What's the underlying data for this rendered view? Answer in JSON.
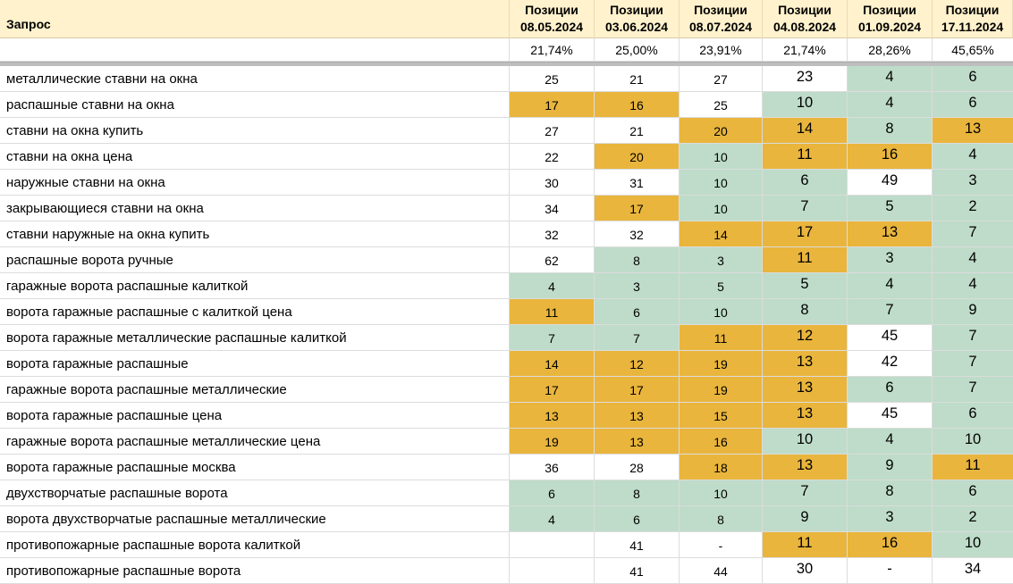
{
  "colors": {
    "highlight_yellow": "#E9B53C",
    "highlight_green": "#BEDCC9",
    "header_background": "#FFF2CC",
    "gridline": "#DCDCDC",
    "frozen_divider": "#BEBEBE"
  },
  "table": {
    "query_header": "Запрос",
    "columns": [
      {
        "line1": "Позиции",
        "line2": "08.05.2024"
      },
      {
        "line1": "Позиции",
        "line2": "03.06.2024"
      },
      {
        "line1": "Позиции",
        "line2": "08.07.2024"
      },
      {
        "line1": "Позиции",
        "line2": "04.08.2024"
      },
      {
        "line1": "Позиции",
        "line2": "01.09.2024"
      },
      {
        "line1": "Позиции",
        "line2": "17.11.2024"
      }
    ],
    "percent_row": [
      "21,74%",
      "25,00%",
      "23,91%",
      "21,74%",
      "28,26%",
      "45,65%"
    ],
    "rows": [
      {
        "query": "металлические ставни на окна",
        "cells": [
          {
            "v": "25",
            "bg": "w"
          },
          {
            "v": "21",
            "bg": "w"
          },
          {
            "v": "27",
            "bg": "w"
          },
          {
            "v": "23",
            "bg": "w"
          },
          {
            "v": "4",
            "bg": "g"
          },
          {
            "v": "6",
            "bg": "g"
          }
        ]
      },
      {
        "query": "распашные ставни на окна",
        "cells": [
          {
            "v": "17",
            "bg": "y"
          },
          {
            "v": "16",
            "bg": "y"
          },
          {
            "v": "25",
            "bg": "w"
          },
          {
            "v": "10",
            "bg": "g"
          },
          {
            "v": "4",
            "bg": "g"
          },
          {
            "v": "6",
            "bg": "g"
          }
        ]
      },
      {
        "query": "ставни на окна купить",
        "cells": [
          {
            "v": "27",
            "bg": "w"
          },
          {
            "v": "21",
            "bg": "w"
          },
          {
            "v": "20",
            "bg": "y"
          },
          {
            "v": "14",
            "bg": "y"
          },
          {
            "v": "8",
            "bg": "g"
          },
          {
            "v": "13",
            "bg": "y"
          }
        ]
      },
      {
        "query": "ставни на окна цена",
        "cells": [
          {
            "v": "22",
            "bg": "w"
          },
          {
            "v": "20",
            "bg": "y"
          },
          {
            "v": "10",
            "bg": "g"
          },
          {
            "v": "11",
            "bg": "y"
          },
          {
            "v": "16",
            "bg": "y"
          },
          {
            "v": "4",
            "bg": "g"
          }
        ]
      },
      {
        "query": "наружные ставни на окна",
        "cells": [
          {
            "v": "30",
            "bg": "w"
          },
          {
            "v": "31",
            "bg": "w"
          },
          {
            "v": "10",
            "bg": "g"
          },
          {
            "v": "6",
            "bg": "g"
          },
          {
            "v": "49",
            "bg": "w"
          },
          {
            "v": "3",
            "bg": "g"
          }
        ]
      },
      {
        "query": "закрывающиеся ставни на окна",
        "cells": [
          {
            "v": "34",
            "bg": "w"
          },
          {
            "v": "17",
            "bg": "y"
          },
          {
            "v": "10",
            "bg": "g"
          },
          {
            "v": "7",
            "bg": "g"
          },
          {
            "v": "5",
            "bg": "g"
          },
          {
            "v": "2",
            "bg": "g"
          }
        ]
      },
      {
        "query": "ставни наружные на окна купить",
        "cells": [
          {
            "v": "32",
            "bg": "w"
          },
          {
            "v": "32",
            "bg": "w"
          },
          {
            "v": "14",
            "bg": "y"
          },
          {
            "v": "17",
            "bg": "y"
          },
          {
            "v": "13",
            "bg": "y"
          },
          {
            "v": "7",
            "bg": "g"
          }
        ]
      },
      {
        "query": "распашные ворота ручные",
        "cells": [
          {
            "v": "62",
            "bg": "w"
          },
          {
            "v": "8",
            "bg": "g"
          },
          {
            "v": "3",
            "bg": "g"
          },
          {
            "v": "11",
            "bg": "y"
          },
          {
            "v": "3",
            "bg": "g"
          },
          {
            "v": "4",
            "bg": "g"
          }
        ]
      },
      {
        "query": "гаражные ворота распашные калиткой",
        "cells": [
          {
            "v": "4",
            "bg": "g"
          },
          {
            "v": "3",
            "bg": "g"
          },
          {
            "v": "5",
            "bg": "g"
          },
          {
            "v": "5",
            "bg": "g"
          },
          {
            "v": "4",
            "bg": "g"
          },
          {
            "v": "4",
            "bg": "g"
          }
        ]
      },
      {
        "query": "ворота гаражные распашные с калиткой цена",
        "cells": [
          {
            "v": "11",
            "bg": "y"
          },
          {
            "v": "6",
            "bg": "g"
          },
          {
            "v": "10",
            "bg": "g"
          },
          {
            "v": "8",
            "bg": "g"
          },
          {
            "v": "7",
            "bg": "g"
          },
          {
            "v": "9",
            "bg": "g"
          }
        ]
      },
      {
        "query": "ворота гаражные металлические распашные калиткой",
        "cells": [
          {
            "v": "7",
            "bg": "g"
          },
          {
            "v": "7",
            "bg": "g"
          },
          {
            "v": "11",
            "bg": "y"
          },
          {
            "v": "12",
            "bg": "y"
          },
          {
            "v": "45",
            "bg": "w"
          },
          {
            "v": "7",
            "bg": "g"
          }
        ]
      },
      {
        "query": "ворота гаражные распашные",
        "cells": [
          {
            "v": "14",
            "bg": "y"
          },
          {
            "v": "12",
            "bg": "y"
          },
          {
            "v": "19",
            "bg": "y"
          },
          {
            "v": "13",
            "bg": "y"
          },
          {
            "v": "42",
            "bg": "w"
          },
          {
            "v": "7",
            "bg": "g"
          }
        ]
      },
      {
        "query": "гаражные ворота распашные металлические",
        "cells": [
          {
            "v": "17",
            "bg": "y"
          },
          {
            "v": "17",
            "bg": "y"
          },
          {
            "v": "19",
            "bg": "y"
          },
          {
            "v": "13",
            "bg": "y"
          },
          {
            "v": "6",
            "bg": "g"
          },
          {
            "v": "7",
            "bg": "g"
          }
        ]
      },
      {
        "query": "ворота гаражные распашные цена",
        "cells": [
          {
            "v": "13",
            "bg": "y"
          },
          {
            "v": "13",
            "bg": "y"
          },
          {
            "v": "15",
            "bg": "y"
          },
          {
            "v": "13",
            "bg": "y"
          },
          {
            "v": "45",
            "bg": "w"
          },
          {
            "v": "6",
            "bg": "g"
          }
        ]
      },
      {
        "query": "гаражные ворота распашные металлические цена",
        "cells": [
          {
            "v": "19",
            "bg": "y"
          },
          {
            "v": "13",
            "bg": "y"
          },
          {
            "v": "16",
            "bg": "y"
          },
          {
            "v": "10",
            "bg": "g"
          },
          {
            "v": "4",
            "bg": "g"
          },
          {
            "v": "10",
            "bg": "g"
          }
        ]
      },
      {
        "query": "ворота гаражные распашные москва",
        "cells": [
          {
            "v": "36",
            "bg": "w"
          },
          {
            "v": "28",
            "bg": "w"
          },
          {
            "v": "18",
            "bg": "y"
          },
          {
            "v": "13",
            "bg": "y"
          },
          {
            "v": "9",
            "bg": "g"
          },
          {
            "v": "11",
            "bg": "y"
          }
        ]
      },
      {
        "query": "двухстворчатые распашные ворота",
        "cells": [
          {
            "v": "6",
            "bg": "g"
          },
          {
            "v": "8",
            "bg": "g"
          },
          {
            "v": "10",
            "bg": "g"
          },
          {
            "v": "7",
            "bg": "g"
          },
          {
            "v": "8",
            "bg": "g"
          },
          {
            "v": "6",
            "bg": "g"
          }
        ]
      },
      {
        "query": "ворота двухстворчатые распашные металлические",
        "cells": [
          {
            "v": "4",
            "bg": "g"
          },
          {
            "v": "6",
            "bg": "g"
          },
          {
            "v": "8",
            "bg": "g"
          },
          {
            "v": "9",
            "bg": "g"
          },
          {
            "v": "3",
            "bg": "g"
          },
          {
            "v": "2",
            "bg": "g"
          }
        ]
      },
      {
        "query": "противопожарные распашные ворота калиткой",
        "cells": [
          {
            "v": "",
            "bg": "w"
          },
          {
            "v": "41",
            "bg": "w"
          },
          {
            "v": "-",
            "bg": "w"
          },
          {
            "v": "11",
            "bg": "y"
          },
          {
            "v": "16",
            "bg": "y"
          },
          {
            "v": "10",
            "bg": "g"
          }
        ]
      },
      {
        "query": "противопожарные распашные ворота",
        "cells": [
          {
            "v": "",
            "bg": "w"
          },
          {
            "v": "41",
            "bg": "w"
          },
          {
            "v": "44",
            "bg": "w"
          },
          {
            "v": "30",
            "bg": "w"
          },
          {
            "v": "-",
            "bg": "w"
          },
          {
            "v": "34",
            "bg": "w"
          }
        ]
      }
    ]
  }
}
